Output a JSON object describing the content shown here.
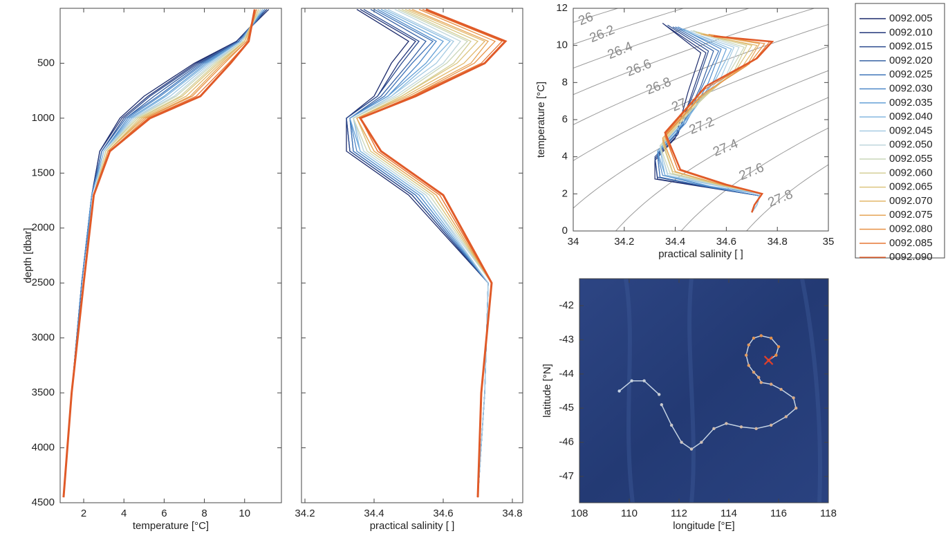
{
  "chart_data": [
    {
      "type": "line",
      "xlabel": "temperature [°C]",
      "ylabel": "depth [dbar]",
      "y_reversed": true,
      "xlim": [
        0.83,
        11.83
      ],
      "xticks": [
        2,
        4,
        6,
        8,
        10
      ],
      "ylim": [
        0,
        4500
      ],
      "yticks": [
        500,
        1000,
        1500,
        2000,
        2500,
        3000,
        3500,
        4000,
        4500
      ],
      "y": [
        10,
        300,
        500,
        800,
        1000,
        1300,
        1700,
        2500,
        3500,
        4450
      ],
      "series": [
        {
          "name": "0092.005",
          "color": "#1b2a6b",
          "values": [
            11.2,
            9.6,
            7.5,
            5.0,
            3.8,
            2.8,
            2.4,
            1.9,
            1.4,
            1.0
          ]
        },
        {
          "name": "0092.010",
          "color": "#22367a",
          "values": [
            11.1,
            9.6,
            7.6,
            5.2,
            3.9,
            2.8,
            2.4,
            1.9,
            1.4,
            1.0
          ]
        },
        {
          "name": "0092.015",
          "color": "#2a4a8e",
          "values": [
            11.1,
            9.7,
            7.7,
            5.3,
            4.0,
            2.9,
            2.4,
            1.9,
            1.4,
            1.0
          ]
        },
        {
          "name": "0092.020",
          "color": "#3560a3",
          "values": [
            11.0,
            9.7,
            7.8,
            5.5,
            4.1,
            2.9,
            2.4,
            1.9,
            1.4,
            1.0
          ]
        },
        {
          "name": "0092.025",
          "color": "#3f74b8",
          "values": [
            11.0,
            9.7,
            7.9,
            5.7,
            4.1,
            2.9,
            2.4,
            1.9,
            1.4,
            1.0
          ]
        },
        {
          "name": "0092.030",
          "color": "#4d88c8",
          "values": [
            11.0,
            9.8,
            8.0,
            5.8,
            4.2,
            3.0,
            2.4,
            1.9,
            1.4,
            1.0
          ]
        },
        {
          "name": "0092.035",
          "color": "#64a0d6",
          "values": [
            10.9,
            9.8,
            8.1,
            6.0,
            4.3,
            3.0,
            2.4,
            2.0,
            1.4,
            1.0
          ]
        },
        {
          "name": "0092.040",
          "color": "#84b8e0",
          "values": [
            10.9,
            9.8,
            8.2,
            6.1,
            4.4,
            3.0,
            2.5,
            2.0,
            1.4,
            1.0
          ]
        },
        {
          "name": "0092.045",
          "color": "#a6cbe3",
          "values": [
            10.8,
            9.9,
            8.3,
            6.3,
            4.5,
            3.0,
            2.5,
            2.0,
            1.4,
            1.0
          ]
        },
        {
          "name": "0092.050",
          "color": "#bfd6dc",
          "values": [
            10.8,
            9.9,
            8.4,
            6.5,
            4.5,
            3.1,
            2.5,
            2.0,
            1.4,
            1.0
          ]
        },
        {
          "name": "0092.055",
          "color": "#c9d6b8",
          "values": [
            10.8,
            9.9,
            8.5,
            6.6,
            4.6,
            3.1,
            2.5,
            2.0,
            1.4,
            1.0
          ]
        },
        {
          "name": "0092.060",
          "color": "#d4cf98",
          "values": [
            10.7,
            10.0,
            8.6,
            6.8,
            4.7,
            3.1,
            2.5,
            2.0,
            1.4,
            1.0
          ]
        },
        {
          "name": "0092.065",
          "color": "#dcc57e",
          "values": [
            10.7,
            10.0,
            8.7,
            6.9,
            4.8,
            3.2,
            2.5,
            2.0,
            1.4,
            1.0
          ]
        },
        {
          "name": "0092.070",
          "color": "#e2b668",
          "values": [
            10.6,
            10.0,
            8.8,
            7.1,
            4.9,
            3.2,
            2.5,
            2.0,
            1.4,
            1.0
          ]
        },
        {
          "name": "0092.075",
          "color": "#e6a456",
          "values": [
            10.6,
            10.1,
            8.9,
            7.3,
            5.0,
            3.2,
            2.5,
            2.0,
            1.4,
            1.0
          ]
        },
        {
          "name": "0092.080",
          "color": "#e89044",
          "values": [
            10.6,
            10.1,
            9.0,
            7.4,
            5.1,
            3.3,
            2.5,
            2.0,
            1.4,
            1.0
          ]
        },
        {
          "name": "0092.085",
          "color": "#e67634",
          "values": [
            10.5,
            10.2,
            9.2,
            7.6,
            5.2,
            3.3,
            2.5,
            2.0,
            1.4,
            1.0
          ]
        },
        {
          "name": "0092.090",
          "color": "#e05a28",
          "values": [
            10.5,
            10.2,
            9.3,
            7.8,
            5.3,
            3.3,
            2.5,
            2.0,
            1.4,
            1.0
          ]
        }
      ]
    },
    {
      "type": "line",
      "xlabel": "practical salinity [ ]",
      "xlim": [
        34.19,
        34.83
      ],
      "xticks": [
        34.2,
        34.4,
        34.6,
        34.8
      ],
      "series": [
        {
          "values": [
            34.35,
            34.5,
            34.45,
            34.4,
            34.32,
            34.32,
            34.5,
            34.73,
            34.72,
            34.7
          ]
        },
        {
          "values": [
            34.36,
            34.52,
            34.47,
            34.41,
            34.32,
            34.33,
            34.51,
            34.73,
            34.72,
            34.7
          ]
        },
        {
          "values": [
            34.37,
            34.53,
            34.48,
            34.41,
            34.32,
            34.33,
            34.51,
            34.73,
            34.72,
            34.7
          ]
        },
        {
          "values": [
            34.39,
            34.55,
            34.5,
            34.42,
            34.33,
            34.34,
            34.52,
            34.73,
            34.72,
            34.7
          ]
        },
        {
          "values": [
            34.4,
            34.57,
            34.51,
            34.43,
            34.33,
            34.34,
            34.52,
            34.73,
            34.72,
            34.7
          ]
        },
        {
          "values": [
            34.41,
            34.58,
            34.53,
            34.44,
            34.33,
            34.35,
            34.53,
            34.73,
            34.72,
            34.7
          ]
        },
        {
          "values": [
            34.42,
            34.6,
            34.55,
            34.44,
            34.33,
            34.36,
            34.54,
            34.73,
            34.72,
            34.7
          ]
        },
        {
          "values": [
            34.43,
            34.62,
            34.56,
            34.45,
            34.34,
            34.36,
            34.54,
            34.73,
            34.72,
            34.7
          ]
        },
        {
          "values": [
            34.44,
            34.63,
            34.58,
            34.45,
            34.34,
            34.37,
            34.55,
            34.73,
            34.72,
            34.7
          ]
        },
        {
          "values": [
            34.46,
            34.65,
            34.6,
            34.46,
            34.34,
            34.37,
            34.55,
            34.74,
            34.71,
            34.7
          ]
        },
        {
          "values": [
            34.47,
            34.67,
            34.61,
            34.47,
            34.34,
            34.38,
            34.56,
            34.74,
            34.71,
            34.7
          ]
        },
        {
          "values": [
            34.48,
            34.68,
            34.63,
            34.48,
            34.35,
            34.39,
            34.57,
            34.74,
            34.71,
            34.7
          ]
        },
        {
          "values": [
            34.49,
            34.7,
            34.64,
            34.48,
            34.35,
            34.39,
            34.57,
            34.74,
            34.71,
            34.7
          ]
        },
        {
          "values": [
            34.5,
            34.72,
            34.66,
            34.49,
            34.35,
            34.4,
            34.58,
            34.74,
            34.71,
            34.7
          ]
        },
        {
          "values": [
            34.51,
            34.73,
            34.68,
            34.5,
            34.35,
            34.4,
            34.58,
            34.74,
            34.71,
            34.7
          ]
        },
        {
          "values": [
            34.53,
            34.75,
            34.69,
            34.51,
            34.36,
            34.41,
            34.59,
            34.74,
            34.71,
            34.7
          ]
        },
        {
          "values": [
            34.54,
            34.77,
            34.71,
            34.51,
            34.36,
            34.41,
            34.59,
            34.74,
            34.71,
            34.7
          ]
        },
        {
          "values": [
            34.55,
            34.78,
            34.72,
            34.52,
            34.36,
            34.42,
            34.6,
            34.74,
            34.71,
            34.7
          ]
        }
      ]
    },
    {
      "type": "line",
      "xlabel": "practical salinity [ ]",
      "ylabel": "temperature [°C]",
      "xlim": [
        34,
        35
      ],
      "xticks": [
        34,
        34.2,
        34.4,
        34.6,
        34.8,
        35
      ],
      "ylim": [
        0,
        12
      ],
      "yticks": [
        0,
        2,
        4,
        6,
        8,
        10,
        12
      ],
      "contours": [
        26,
        26.2,
        26.4,
        26.6,
        26.8,
        27,
        27.2,
        27.4,
        27.6,
        27.8
      ],
      "contour_color": "#8a8a8a"
    },
    {
      "type": "map",
      "xlabel": "longitude [°E]",
      "ylabel": "latitude [°N]",
      "xlim": [
        108,
        118
      ],
      "xticks": [
        108,
        110,
        112,
        114,
        116,
        118
      ],
      "ylim": [
        -47.77,
        -41.21
      ],
      "yticks": [
        -47,
        -46,
        -45,
        -44,
        -43,
        -42
      ],
      "color": "#c6d4e4",
      "end_color": "#e8893a",
      "marker_color": "#e0402a",
      "x": [
        109.6,
        110.1,
        110.6,
        111.2,
        null,
        111.3,
        111.7,
        112.1,
        112.5,
        112.9,
        113.4,
        113.9,
        114.5,
        115.1,
        115.7,
        116.3,
        116.7,
        116.6,
        116.1,
        115.7,
        115.3,
        115.2,
        115.0,
        114.8,
        114.7,
        114.8,
        115.0,
        115.3,
        115.7,
        116.0,
        115.9,
        115.6
      ],
      "values": [
        -44.5,
        -44.2,
        -44.2,
        -44.6,
        null,
        -44.9,
        -45.5,
        -46.0,
        -46.2,
        -46.0,
        -45.6,
        -45.45,
        -45.55,
        -45.6,
        -45.5,
        -45.25,
        -45.0,
        -44.7,
        -44.45,
        -44.3,
        -44.25,
        -44.1,
        -43.95,
        -43.75,
        -43.45,
        -43.15,
        -42.95,
        -42.88,
        -42.95,
        -43.2,
        -43.45,
        -43.6
      ]
    }
  ]
}
